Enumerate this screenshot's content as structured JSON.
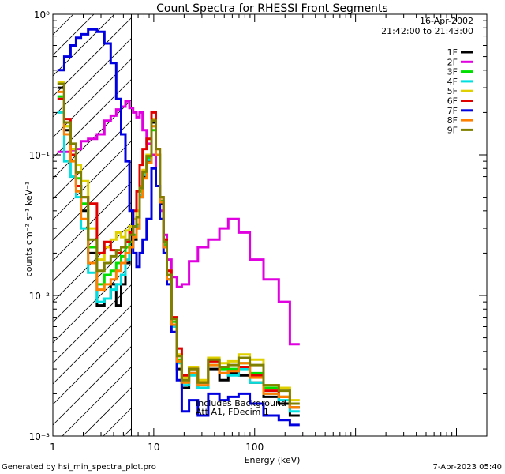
{
  "chart_data": {
    "type": "line",
    "title": "Count Spectra for RHESSI Front Segments",
    "xlabel": "Energy (keV)",
    "ylabel": "counts cm⁻² s⁻¹ keV⁻¹",
    "xscale": "log",
    "yscale": "log",
    "xlim": [
      1.0,
      20000.0
    ],
    "ylim": [
      0.001,
      1.0
    ],
    "x_ticks": [
      {
        "value": 1,
        "label": "1"
      },
      {
        "value": 10,
        "label": "10"
      },
      {
        "value": 100,
        "label": "100"
      }
    ],
    "y_ticks": [
      {
        "value": 1.0,
        "label": "10⁰"
      },
      {
        "value": 0.1,
        "label": "10⁻¹"
      },
      {
        "value": 0.01,
        "label": "10⁻²"
      },
      {
        "value": 0.001,
        "label": "10⁻³"
      }
    ],
    "date_label": "16-Apr-2002",
    "time_range_label": "21:42:00 to 21:43:00",
    "attenuator_note": [
      "Includes Background",
      "Att A1, FDecim 1"
    ],
    "hatched_region_keV": [
      1.0,
      6.0
    ],
    "series": [
      {
        "name": "1F",
        "color": "#000000",
        "energy": [
          1.2,
          1.4,
          1.6,
          1.8,
          2.0,
          2.5,
          3.0,
          3.5,
          4.0,
          4.5,
          5.0,
          5.5,
          6.0,
          6.5,
          7.0,
          7.5,
          8.0,
          9.0,
          10.0,
          11.0,
          12.0,
          13.0,
          14.0,
          16.0,
          18.0,
          20.0,
          25.0,
          30.0,
          40.0,
          50.0,
          60.0,
          80.0,
          100.0,
          150.0,
          200.0,
          250.0
        ],
        "counts": [
          0.3,
          0.15,
          0.1,
          0.06,
          0.04,
          0.02,
          0.0085,
          0.0095,
          0.012,
          0.0085,
          0.012,
          0.017,
          0.024,
          0.025,
          0.03,
          0.05,
          0.07,
          0.09,
          0.17,
          0.1,
          0.045,
          0.022,
          0.013,
          0.006,
          0.003,
          0.0022,
          0.0028,
          0.0022,
          0.003,
          0.0025,
          0.0028,
          0.0027,
          0.0024,
          0.0019,
          0.0017,
          0.0014
        ]
      },
      {
        "name": "2F",
        "color": "#e000e0",
        "energy": [
          1.2,
          1.4,
          1.6,
          1.8,
          2.0,
          2.5,
          3.0,
          3.5,
          4.0,
          4.5,
          5.0,
          5.5,
          6.0,
          6.5,
          7.0,
          7.5,
          8.0,
          9.0,
          10.0,
          11.0,
          12.0,
          13.0,
          14.0,
          16.0,
          18.0,
          20.0,
          25.0,
          30.0,
          40.0,
          50.0,
          60.0,
          80.0,
          100.0,
          150.0,
          200.0,
          250.0
        ],
        "counts": [
          0.105,
          0.105,
          0.108,
          0.11,
          0.125,
          0.13,
          0.14,
          0.175,
          0.19,
          0.21,
          0.22,
          0.24,
          0.215,
          0.2,
          0.185,
          0.2,
          0.15,
          0.12,
          0.1,
          0.06,
          0.04,
          0.027,
          0.018,
          0.0135,
          0.0115,
          0.012,
          0.0175,
          0.022,
          0.025,
          0.03,
          0.035,
          0.028,
          0.018,
          0.013,
          0.009,
          0.0045
        ]
      },
      {
        "name": "3F",
        "color": "#00e000",
        "energy": [
          1.2,
          1.4,
          1.6,
          1.8,
          2.0,
          2.5,
          3.0,
          3.5,
          4.0,
          4.5,
          5.0,
          5.5,
          6.0,
          6.5,
          7.0,
          7.5,
          8.0,
          9.0,
          10.0,
          11.0,
          12.0,
          13.0,
          14.0,
          16.0,
          18.0,
          20.0,
          25.0,
          30.0,
          40.0,
          50.0,
          60.0,
          80.0,
          100.0,
          150.0,
          200.0,
          250.0
        ],
        "counts": [
          0.26,
          0.16,
          0.11,
          0.068,
          0.045,
          0.022,
          0.012,
          0.014,
          0.015,
          0.017,
          0.019,
          0.022,
          0.024,
          0.027,
          0.032,
          0.055,
          0.075,
          0.095,
          0.15,
          0.1,
          0.047,
          0.023,
          0.014,
          0.0065,
          0.0035,
          0.0024,
          0.003,
          0.0024,
          0.0035,
          0.003,
          0.003,
          0.0033,
          0.0028,
          0.0022,
          0.0019,
          0.0016
        ]
      },
      {
        "name": "4F",
        "color": "#00e0e0",
        "energy": [
          1.2,
          1.4,
          1.6,
          1.8,
          2.0,
          2.5,
          3.0,
          3.5,
          4.0,
          4.5,
          5.0,
          5.5,
          6.0,
          6.5,
          7.0,
          7.5,
          8.0,
          9.0,
          10.0,
          11.0,
          12.0,
          13.0,
          14.0,
          16.0,
          18.0,
          20.0,
          25.0,
          30.0,
          40.0,
          50.0,
          60.0,
          80.0,
          100.0,
          150.0,
          200.0,
          250.0
        ],
        "counts": [
          0.2,
          0.09,
          0.07,
          0.05,
          0.03,
          0.0145,
          0.009,
          0.0095,
          0.011,
          0.012,
          0.014,
          0.018,
          0.022,
          0.026,
          0.031,
          0.052,
          0.072,
          0.092,
          0.16,
          0.1,
          0.046,
          0.022,
          0.013,
          0.006,
          0.0033,
          0.0023,
          0.0027,
          0.0022,
          0.0032,
          0.0028,
          0.0027,
          0.003,
          0.0024,
          0.002,
          0.0018,
          0.0015
        ]
      },
      {
        "name": "5F",
        "color": "#e0d000",
        "energy": [
          1.2,
          1.4,
          1.6,
          1.8,
          2.0,
          2.5,
          3.0,
          3.5,
          4.0,
          4.5,
          5.0,
          5.5,
          6.0,
          6.5,
          7.0,
          7.5,
          8.0,
          9.0,
          10.0,
          11.0,
          12.0,
          13.0,
          14.0,
          16.0,
          18.0,
          20.0,
          25.0,
          30.0,
          40.0,
          50.0,
          60.0,
          80.0,
          100.0,
          150.0,
          200.0,
          250.0
        ],
        "counts": [
          0.33,
          0.16,
          0.11,
          0.085,
          0.065,
          0.03,
          0.018,
          0.022,
          0.025,
          0.028,
          0.026,
          0.029,
          0.031,
          0.035,
          0.04,
          0.06,
          0.078,
          0.1,
          0.18,
          0.11,
          0.05,
          0.025,
          0.015,
          0.007,
          0.0038,
          0.0026,
          0.0031,
          0.0025,
          0.0036,
          0.0033,
          0.0034,
          0.0038,
          0.0035,
          0.0023,
          0.0022,
          0.0018
        ]
      },
      {
        "name": "6F",
        "color": "#e00000",
        "energy": [
          1.2,
          1.4,
          1.6,
          1.8,
          2.0,
          2.5,
          3.0,
          3.5,
          4.0,
          4.5,
          5.0,
          5.5,
          6.0,
          6.5,
          7.0,
          7.5,
          8.0,
          9.0,
          10.0,
          11.0,
          12.0,
          13.0,
          14.0,
          16.0,
          18.0,
          20.0,
          25.0,
          30.0,
          40.0,
          50.0,
          60.0,
          80.0,
          100.0,
          150.0,
          200.0,
          250.0
        ],
        "counts": [
          0.25,
          0.18,
          0.1,
          0.06,
          0.05,
          0.045,
          0.02,
          0.024,
          0.021,
          0.02,
          0.022,
          0.024,
          0.028,
          0.04,
          0.055,
          0.085,
          0.11,
          0.13,
          0.2,
          0.11,
          0.05,
          0.025,
          0.015,
          0.007,
          0.0042,
          0.0027,
          0.003,
          0.0024,
          0.0034,
          0.0028,
          0.0029,
          0.0031,
          0.0027,
          0.0021,
          0.0019,
          0.0016
        ]
      },
      {
        "name": "7F",
        "color": "#0000e0",
        "energy": [
          1.2,
          1.4,
          1.6,
          1.8,
          2.0,
          2.5,
          3.0,
          3.5,
          4.0,
          4.5,
          5.0,
          5.5,
          6.0,
          6.5,
          7.0,
          7.5,
          8.0,
          9.0,
          10.0,
          11.0,
          12.0,
          13.0,
          14.0,
          16.0,
          18.0,
          20.0,
          25.0,
          30.0,
          40.0,
          50.0,
          60.0,
          80.0,
          100.0,
          150.0,
          200.0,
          250.0
        ],
        "counts": [
          0.4,
          0.5,
          0.6,
          0.68,
          0.72,
          0.78,
          0.75,
          0.62,
          0.45,
          0.25,
          0.14,
          0.09,
          0.04,
          0.02,
          0.016,
          0.02,
          0.025,
          0.035,
          0.08,
          0.06,
          0.035,
          0.02,
          0.012,
          0.0055,
          0.0025,
          0.0015,
          0.0018,
          0.0014,
          0.002,
          0.0018,
          0.0019,
          0.002,
          0.0017,
          0.0014,
          0.0013,
          0.0012
        ]
      },
      {
        "name": "8F",
        "color": "#ff8000",
        "energy": [
          1.2,
          1.4,
          1.6,
          1.8,
          2.0,
          2.5,
          3.0,
          3.5,
          4.0,
          4.5,
          5.0,
          5.5,
          6.0,
          6.5,
          7.0,
          7.5,
          8.0,
          9.0,
          10.0,
          11.0,
          12.0,
          13.0,
          14.0,
          16.0,
          18.0,
          20.0,
          25.0,
          30.0,
          40.0,
          50.0,
          60.0,
          80.0,
          100.0,
          150.0,
          200.0,
          250.0
        ],
        "counts": [
          0.28,
          0.14,
          0.09,
          0.055,
          0.035,
          0.017,
          0.011,
          0.012,
          0.013,
          0.015,
          0.017,
          0.02,
          0.022,
          0.026,
          0.03,
          0.05,
          0.068,
          0.088,
          0.16,
          0.1,
          0.046,
          0.022,
          0.013,
          0.0062,
          0.0034,
          0.0024,
          0.0028,
          0.0023,
          0.0032,
          0.0028,
          0.0029,
          0.0033,
          0.0026,
          0.002,
          0.0019,
          0.0016
        ]
      },
      {
        "name": "9F",
        "color": "#808000",
        "energy": [
          1.2,
          1.4,
          1.6,
          1.8,
          2.0,
          2.5,
          3.0,
          3.5,
          4.0,
          4.5,
          5.0,
          5.5,
          6.0,
          6.5,
          7.0,
          7.5,
          8.0,
          9.0,
          10.0,
          11.0,
          12.0,
          13.0,
          14.0,
          16.0,
          18.0,
          20.0,
          25.0,
          30.0,
          40.0,
          50.0,
          60.0,
          80.0,
          100.0,
          150.0,
          200.0,
          250.0
        ],
        "counts": [
          0.32,
          0.17,
          0.12,
          0.075,
          0.05,
          0.025,
          0.015,
          0.017,
          0.019,
          0.021,
          0.022,
          0.025,
          0.027,
          0.031,
          0.036,
          0.058,
          0.076,
          0.098,
          0.175,
          0.11,
          0.05,
          0.024,
          0.014,
          0.0068,
          0.0037,
          0.0025,
          0.003,
          0.0024,
          0.0035,
          0.0031,
          0.0032,
          0.0036,
          0.0032,
          0.0023,
          0.0021,
          0.0017
        ]
      }
    ]
  },
  "footer": {
    "generated_by": "Generated by hsi_min_spectra_plot.pro",
    "timestamp": "7-Apr-2023 05:40"
  }
}
